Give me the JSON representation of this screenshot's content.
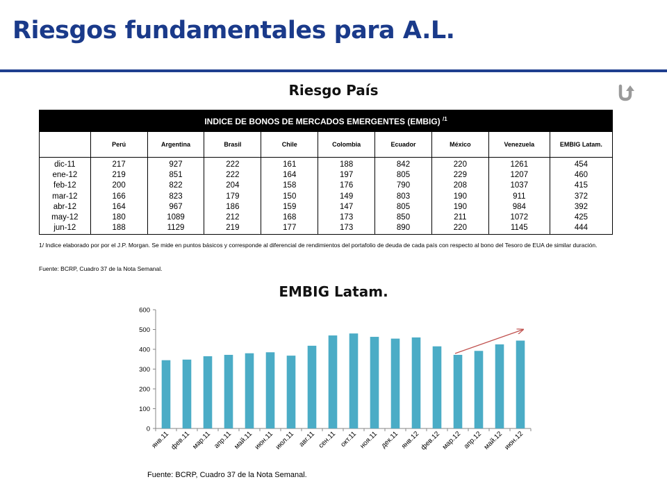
{
  "title": "Riesgos fundamentales para A.L.",
  "colors": {
    "title": "#1a3a8a",
    "rule": "#1f3f8f",
    "bar": "#4bacc6",
    "trend_arrow": "#c0504d"
  },
  "icons": {
    "back": "return-arrow-icon"
  },
  "section1_title": "Riesgo País",
  "table": {
    "heading": "INDICE DE BONOS DE MERCADOS EMERGENTES (EMBIG)",
    "heading_note": "/1",
    "columns": [
      "",
      "Perú",
      "Argentina",
      "Brasil",
      "Chile",
      "Colombia",
      "Ecuador",
      "México",
      "Venezuela",
      "EMBIG Latam."
    ],
    "rows": [
      [
        "dic-11",
        "217",
        "927",
        "222",
        "161",
        "188",
        "842",
        "220",
        "1261",
        "454"
      ],
      [
        "ene-12",
        "219",
        "851",
        "222",
        "164",
        "197",
        "805",
        "229",
        "1207",
        "460"
      ],
      [
        "feb-12",
        "200",
        "822",
        "204",
        "158",
        "176",
        "790",
        "208",
        "1037",
        "415"
      ],
      [
        "mar-12",
        "166",
        "823",
        "179",
        "150",
        "149",
        "803",
        "190",
        "911",
        "372"
      ],
      [
        "abr-12",
        "164",
        "967",
        "186",
        "159",
        "147",
        "805",
        "190",
        "984",
        "392"
      ],
      [
        "may-12",
        "180",
        "1089",
        "212",
        "168",
        "173",
        "850",
        "211",
        "1072",
        "425"
      ],
      [
        "jun-12",
        "188",
        "1129",
        "219",
        "177",
        "173",
        "890",
        "220",
        "1145",
        "444"
      ]
    ]
  },
  "table_note": "1/ Indice elaborado por por el J.P. Morgan. Se mide en puntos básicos y corresponde al diferencial de rendimientos del portafolio de deuda de cada país con respecto al bono del Tesoro de EUA de similar duración.",
  "table_source": "Fuente: BCRP, Cuadro 37  de la Nota Semanal.",
  "section2_title": "EMBIG Latam.",
  "chart_data": {
    "type": "bar",
    "title": "EMBIG Latam.",
    "categories": [
      "янв.11",
      "фев.11",
      "мар.11",
      "апр.11",
      "май.11",
      "июн.11",
      "июл.11",
      "авг.11",
      "сен.11",
      "окт.11",
      "ноя.11",
      "дек.11",
      "янв.12",
      "фев.12",
      "мар.12",
      "апр.12",
      "май.12",
      "июн.12"
    ],
    "values": [
      345,
      348,
      365,
      372,
      380,
      385,
      368,
      418,
      470,
      480,
      463,
      454,
      460,
      415,
      372,
      392,
      425,
      444
    ],
    "ylim": [
      0,
      600
    ],
    "yticks": [
      0,
      100,
      200,
      300,
      400,
      500,
      600
    ],
    "grid": false,
    "legend": "none",
    "annotation": "upward trend arrow from mar.12 to июн.12"
  },
  "chart_source": "Fuente: BCRP, Cuadro 37  de la Nota Semanal."
}
